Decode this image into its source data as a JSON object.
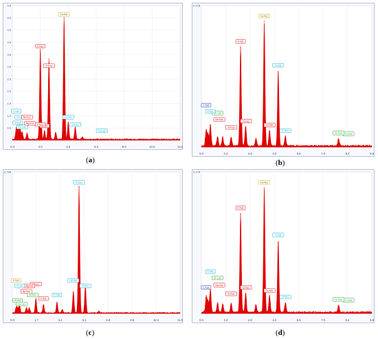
{
  "figure": {
    "panels": [
      {
        "id": "a",
        "caption_open": "(",
        "caption_letter": "a",
        "caption_close": ")"
      },
      {
        "id": "b",
        "caption_open": "(",
        "caption_letter": "b",
        "caption_close": ")"
      },
      {
        "id": "c",
        "caption_open": "(",
        "caption_letter": "c",
        "caption_close": ")"
      },
      {
        "id": "d",
        "caption_open": "(",
        "caption_letter": "d",
        "caption_close": ")"
      }
    ]
  },
  "chart_data": [
    {
      "type": "area",
      "panel": "a",
      "title": "",
      "xlabel": "",
      "ylabel": "",
      "xlim": [
        0,
        12.0
      ],
      "ylim": [
        0,
        5.5
      ],
      "x_ticks": [
        "0.0",
        "2.0",
        "4.0",
        "6.0",
        "8.0",
        "10.0",
        "12.0"
      ],
      "y_ticks": [
        "0.5",
        "1.0",
        "1.5",
        "2.0",
        "2.5",
        "3.0",
        "3.5",
        "4.0",
        "4.5",
        "5.0",
        "5.5"
      ],
      "grid": true,
      "color": "#e00000",
      "baseline": 0.05,
      "peaks": [
        {
          "x": 0.28,
          "y": 0.45
        },
        {
          "x": 0.39,
          "y": 0.35
        },
        {
          "x": 0.53,
          "y": 0.6
        },
        {
          "x": 0.7,
          "y": 0.3
        },
        {
          "x": 1.05,
          "y": 0.25
        },
        {
          "x": 2.0,
          "y": 3.7
        },
        {
          "x": 2.3,
          "y": 0.35
        },
        {
          "x": 2.6,
          "y": 0.4
        },
        {
          "x": 2.62,
          "y": 2.9
        },
        {
          "x": 3.1,
          "y": 0.3
        },
        {
          "x": 3.7,
          "y": 5.0
        },
        {
          "x": 4.0,
          "y": 0.7
        },
        {
          "x": 4.5,
          "y": 0.5
        },
        {
          "x": 5.0,
          "y": 0.1
        }
      ],
      "labels": [
        {
          "text": "Ca Ka1",
          "x": 3.7,
          "y": 5.05,
          "color": "#d4a800"
        },
        {
          "text": "K Ka1",
          "x": 2.0,
          "y": 3.75,
          "color": "#e00000"
        },
        {
          "text": "Cl Ka1",
          "x": 2.62,
          "y": 2.95,
          "color": "#e00000"
        },
        {
          "text": "C Ka1",
          "x": 0.28,
          "y": 1.1,
          "color": "#00b0d0"
        },
        {
          "text": "O Ka1",
          "x": 0.53,
          "y": 0.85,
          "color": "#00b0d0"
        },
        {
          "text": "N Ka1",
          "x": 0.39,
          "y": 0.62,
          "color": "#00b0d0"
        },
        {
          "text": "Na Ka1",
          "x": 1.05,
          "y": 0.85,
          "color": "#e00000"
        },
        {
          "text": "Fe La1",
          "x": 0.7,
          "y": 0.45,
          "color": "#00b0d0"
        },
        {
          "text": "Mg Ka1",
          "x": 1.26,
          "y": 0.6,
          "color": "#e00000"
        },
        {
          "text": "S Ka1",
          "x": 2.3,
          "y": 0.5,
          "color": "#e00000"
        },
        {
          "text": "P Ka1",
          "x": 2.0,
          "y": 0.55,
          "color": "#e00000"
        },
        {
          "text": "Fe Ka1",
          "x": 6.4,
          "y": 0.3,
          "color": "#00b0d0"
        },
        {
          "text": "Ti Ka1",
          "x": 4.5,
          "y": 0.55,
          "color": "#00b0d0"
        },
        {
          "text": "Ca Kb1",
          "x": 4.0,
          "y": 0.85,
          "color": "#00b0d0"
        }
      ]
    },
    {
      "type": "area",
      "panel": "b",
      "title": "",
      "xlabel": "",
      "ylabel": "",
      "xlim": [
        0,
        10
      ],
      "ylim": [
        0,
        0.178
      ],
      "x_ticks": [
        "0.0",
        "1.4",
        "2.8",
        "4.2",
        "5.6",
        "7.0",
        "8.4",
        "9.8"
      ],
      "y_ticks": [
        "0.178"
      ],
      "grid": true,
      "color": "#e00000",
      "baseline": 0.002,
      "peaks": [
        {
          "x": 0.28,
          "y": 0.02
        },
        {
          "x": 0.39,
          "y": 0.015
        },
        {
          "x": 0.53,
          "y": 0.028
        },
        {
          "x": 0.95,
          "y": 0.012
        },
        {
          "x": 1.25,
          "y": 0.011
        },
        {
          "x": 1.75,
          "y": 0.011
        },
        {
          "x": 2.3,
          "y": 0.125
        },
        {
          "x": 2.6,
          "y": 0.025
        },
        {
          "x": 3.2,
          "y": 0.01
        },
        {
          "x": 3.69,
          "y": 0.158
        },
        {
          "x": 4.0,
          "y": 0.02
        },
        {
          "x": 4.51,
          "y": 0.095
        },
        {
          "x": 4.93,
          "y": 0.012
        },
        {
          "x": 8.05,
          "y": 0.009
        }
      ],
      "labels": [
        {
          "text": "Ca Ka1",
          "x": 3.69,
          "y": 0.162,
          "color": "#d4a800"
        },
        {
          "text": "S Ka1",
          "x": 2.3,
          "y": 0.13,
          "color": "#e00000"
        },
        {
          "text": "Ti Ka1",
          "x": 4.51,
          "y": 0.1,
          "color": "#00b0d0"
        },
        {
          "text": "C Ka1",
          "x": 0.28,
          "y": 0.05,
          "color": "#2020c0"
        },
        {
          "text": "Zn La1",
          "x": 0.95,
          "y": 0.04,
          "color": "#20a020"
        },
        {
          "text": "Na Ka1",
          "x": 1.05,
          "y": 0.032,
          "color": "#e00000"
        },
        {
          "text": "O Ka1",
          "x": 0.53,
          "y": 0.042,
          "color": "#00b0d0"
        },
        {
          "text": "Cl Ka1",
          "x": 2.62,
          "y": 0.03,
          "color": "#e00000"
        },
        {
          "text": "Si Ka1",
          "x": 1.75,
          "y": 0.022,
          "color": "#e00000"
        },
        {
          "text": "Ca Kb1",
          "x": 4.0,
          "y": 0.025,
          "color": "#e00000"
        },
        {
          "text": "Ti Kb1",
          "x": 4.93,
          "y": 0.018,
          "color": "#00b0d0"
        },
        {
          "text": "Zn Ka1",
          "x": 8.63,
          "y": 0.014,
          "color": "#20a020"
        },
        {
          "text": "Cu Ka1",
          "x": 8.05,
          "y": 0.015,
          "color": "#20a020"
        }
      ]
    },
    {
      "type": "area",
      "panel": "c",
      "title": "",
      "xlabel": "",
      "ylabel": "",
      "xlim": [
        0,
        12.4
      ],
      "ylim": [
        0,
        0.78
      ],
      "x_ticks": [
        "0.0",
        "1.7",
        "3.4",
        "5.1",
        "6.8",
        "8.5",
        "10.2",
        "11.9"
      ],
      "y_ticks": [
        "0.738"
      ],
      "grid": true,
      "color": "#e00000",
      "baseline": 0.005,
      "peaks": [
        {
          "x": 0.28,
          "y": 0.03
        },
        {
          "x": 0.39,
          "y": 0.025
        },
        {
          "x": 0.53,
          "y": 0.045
        },
        {
          "x": 1.04,
          "y": 0.03
        },
        {
          "x": 1.25,
          "y": 0.03
        },
        {
          "x": 1.74,
          "y": 0.08
        },
        {
          "x": 2.3,
          "y": 0.045
        },
        {
          "x": 3.3,
          "y": 0.06
        },
        {
          "x": 3.69,
          "y": 0.02
        },
        {
          "x": 4.51,
          "y": 0.12
        },
        {
          "x": 4.93,
          "y": 0.7
        },
        {
          "x": 5.4,
          "y": 0.15
        },
        {
          "x": 6.4,
          "y": 0.01
        }
      ],
      "labels": [
        {
          "text": "Ti Ka1",
          "x": 4.93,
          "y": 0.71,
          "color": "#00b0d0"
        },
        {
          "text": "Ca Ka1",
          "x": 4.51,
          "y": 0.17,
          "color": "#00b0d0"
        },
        {
          "text": "Ti Kb1",
          "x": 5.4,
          "y": 0.14,
          "color": "#00b0d0"
        },
        {
          "text": "Si Ka1",
          "x": 1.74,
          "y": 0.15,
          "color": "#e00000"
        },
        {
          "text": "Mg Ka1",
          "x": 1.25,
          "y": 0.14,
          "color": "#e00000"
        },
        {
          "text": "K Ka1",
          "x": 3.3,
          "y": 0.09,
          "color": "#00b0d0"
        },
        {
          "text": "C Ka1",
          "x": 0.28,
          "y": 0.17,
          "color": "#d4a800"
        },
        {
          "text": "O Ka1",
          "x": 0.53,
          "y": 0.14,
          "color": "#00b0d0"
        },
        {
          "text": "Na Ka1",
          "x": 1.04,
          "y": 0.11,
          "color": "#e00000"
        },
        {
          "text": "Al Ka1",
          "x": 1.49,
          "y": 0.09,
          "color": "#20a020"
        },
        {
          "text": "S Ka1",
          "x": 2.3,
          "y": 0.07,
          "color": "#e00000"
        },
        {
          "text": "N Ka1",
          "x": 0.39,
          "y": 0.06,
          "color": "#20a020"
        },
        {
          "text": "Fe La1",
          "x": 0.7,
          "y": 0.04,
          "color": "#20a020"
        }
      ]
    },
    {
      "type": "area",
      "panel": "d",
      "title": "",
      "xlabel": "",
      "ylabel": "",
      "xlim": [
        0,
        10
      ],
      "ylim": [
        0,
        0.178
      ],
      "x_ticks": [
        "0.0",
        "1.4",
        "2.8",
        "4.2",
        "5.6",
        "7.0",
        "8.4",
        "9.8"
      ],
      "y_ticks": [
        "0.178"
      ],
      "grid": true,
      "color": "#e00000",
      "baseline": 0.002,
      "peaks": [
        {
          "x": 0.28,
          "y": 0.02
        },
        {
          "x": 0.39,
          "y": 0.015
        },
        {
          "x": 0.53,
          "y": 0.03
        },
        {
          "x": 0.95,
          "y": 0.012
        },
        {
          "x": 1.25,
          "y": 0.011
        },
        {
          "x": 1.75,
          "y": 0.011
        },
        {
          "x": 2.3,
          "y": 0.125
        },
        {
          "x": 2.6,
          "y": 0.025
        },
        {
          "x": 3.2,
          "y": 0.01
        },
        {
          "x": 3.69,
          "y": 0.158
        },
        {
          "x": 4.0,
          "y": 0.022
        },
        {
          "x": 4.51,
          "y": 0.09
        },
        {
          "x": 4.93,
          "y": 0.012
        },
        {
          "x": 8.05,
          "y": 0.009
        }
      ],
      "labels": [
        {
          "text": "Ca Ka1",
          "x": 3.69,
          "y": 0.162,
          "color": "#d4a800"
        },
        {
          "text": "S Ka1",
          "x": 2.3,
          "y": 0.13,
          "color": "#e00000"
        },
        {
          "text": "Ti Ka1",
          "x": 4.51,
          "y": 0.096,
          "color": "#00b0d0"
        },
        {
          "text": "O Ka1",
          "x": 0.53,
          "y": 0.05,
          "color": "#00b0d0"
        },
        {
          "text": "Zn La1",
          "x": 0.95,
          "y": 0.042,
          "color": "#20a020"
        },
        {
          "text": "Na Ka1",
          "x": 1.05,
          "y": 0.033,
          "color": "#e00000"
        },
        {
          "text": "C Ka1",
          "x": 0.28,
          "y": 0.03,
          "color": "#2020c0"
        },
        {
          "text": "Cl Ka1",
          "x": 2.62,
          "y": 0.03,
          "color": "#e00000"
        },
        {
          "text": "Si Ka1",
          "x": 1.75,
          "y": 0.022,
          "color": "#e00000"
        },
        {
          "text": "Ca Kb1",
          "x": 4.0,
          "y": 0.026,
          "color": "#e00000"
        },
        {
          "text": "Ti Kb1",
          "x": 4.93,
          "y": 0.018,
          "color": "#00b0d0"
        },
        {
          "text": "Zn Ka1",
          "x": 8.63,
          "y": 0.014,
          "color": "#20a020"
        },
        {
          "text": "Cu Ka1",
          "x": 8.05,
          "y": 0.015,
          "color": "#20a020"
        }
      ]
    }
  ]
}
